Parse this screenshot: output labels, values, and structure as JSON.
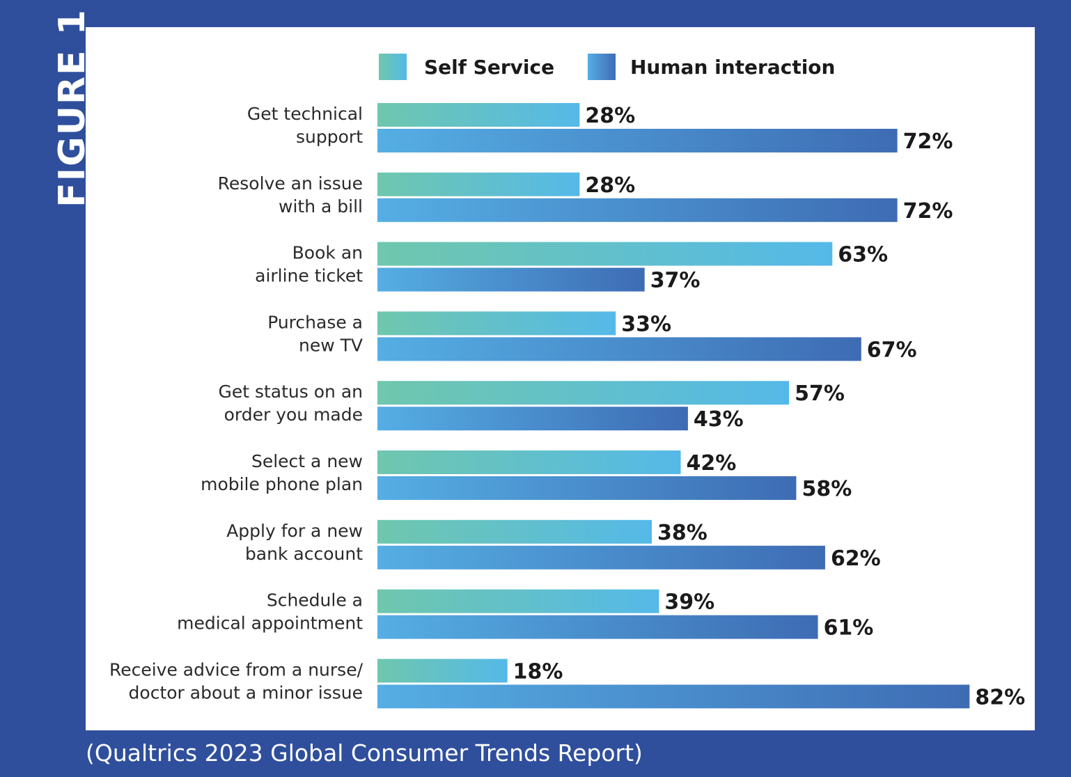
{
  "figure_label": "FIGURE 1",
  "source": "(Qualtrics 2023 Global Consumer Trends Report)",
  "colors": {
    "background": "#2f4f9c",
    "panel": "#ffffff",
    "self_service_start": "#6fc7ad",
    "self_service_end": "#55b9e8",
    "human_start": "#55aee4",
    "human_end": "#3e6cb4"
  },
  "chart_data": {
    "type": "bar",
    "orientation": "horizontal",
    "title": "",
    "xlabel": "",
    "ylabel": "",
    "xlim": [
      0,
      100
    ],
    "grid": false,
    "legend": "top",
    "categories": [
      [
        "Get technical",
        "support"
      ],
      [
        "Resolve an issue",
        "with a bill"
      ],
      [
        "Book an",
        "airline ticket"
      ],
      [
        "Purchase a",
        "new TV"
      ],
      [
        "Get status on an",
        "order you made"
      ],
      [
        "Select a new",
        "mobile phone plan"
      ],
      [
        "Apply for a new",
        "bank account"
      ],
      [
        "Schedule a",
        "medical appointment"
      ],
      [
        "Receive advice from a nurse/",
        "doctor about a minor issue"
      ]
    ],
    "series": [
      {
        "name": "Self Service",
        "values": [
          28,
          28,
          63,
          33,
          57,
          42,
          38,
          39,
          18
        ],
        "labels": [
          "28%",
          "28%",
          "63%",
          "33%",
          "57%",
          "42%",
          "38%",
          "39%",
          "18%"
        ]
      },
      {
        "name": "Human interaction",
        "values": [
          72,
          72,
          37,
          67,
          43,
          58,
          62,
          61,
          82
        ],
        "labels": [
          "72%",
          "72%",
          "37%",
          "67%",
          "43%",
          "58%",
          "62%",
          "61%",
          "82%"
        ]
      }
    ]
  }
}
